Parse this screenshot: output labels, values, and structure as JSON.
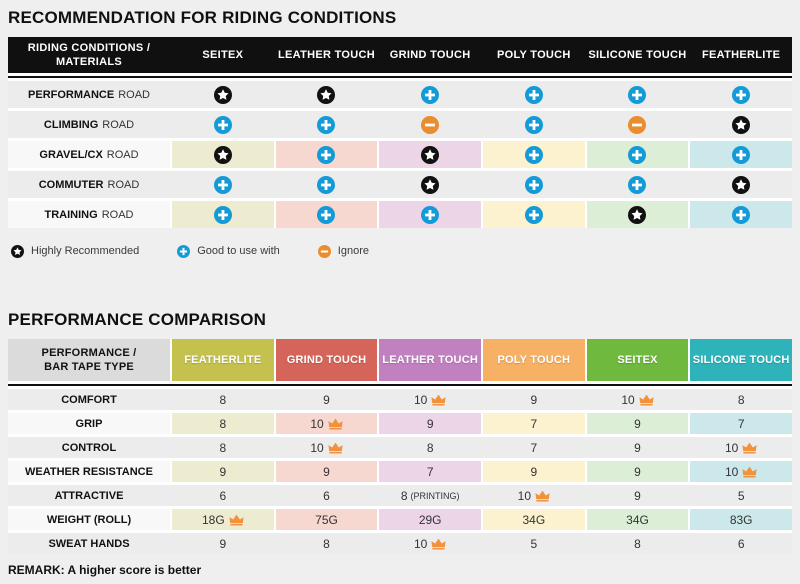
{
  "page": {
    "section1_title": "RECOMMENDATION FOR RIDING CONDITIONS",
    "section2_title": "PERFORMANCE COMPARISON",
    "remark": "REMARK: A higher score is better"
  },
  "colors": {
    "page_bg": "#efeff0",
    "header_black": "#101010",
    "row_gray": "#ececec",
    "row_label_light": "#f8f8f8",
    "blue_plus": "#149bd7",
    "orange_minus": "#e98d2f",
    "star_black": "#111111",
    "crown_orange": "#f0923e",
    "corner_gray": "#dbdbdb",
    "pale": [
      "#eeecd0",
      "#f6d8d0",
      "#edd5e8",
      "#fcf2cf",
      "#ddeed6",
      "#cde8ea"
    ]
  },
  "riding_table": {
    "corner_line1": "RIDING CONDITIONS /",
    "corner_line2": "MATERIALS",
    "columns": [
      "SEITEX",
      "LEATHER TOUCH",
      "GRIND TOUCH",
      "POLY TOUCH",
      "SILICONE TOUCH",
      "FEATHERLITE"
    ],
    "rows": [
      {
        "condition": "PERFORMANCE",
        "suffix": "ROAD",
        "colored": false,
        "cells": [
          "star",
          "star",
          "plus",
          "plus",
          "plus",
          "plus"
        ]
      },
      {
        "condition": "CLIMBING",
        "suffix": "ROAD",
        "colored": false,
        "cells": [
          "plus",
          "plus",
          "minus",
          "plus",
          "minus",
          "star"
        ]
      },
      {
        "condition": "GRAVEL/CX",
        "suffix": "ROAD",
        "colored": true,
        "cells": [
          "star",
          "plus",
          "star",
          "plus",
          "plus",
          "plus"
        ]
      },
      {
        "condition": "COMMUTER",
        "suffix": "ROAD",
        "colored": false,
        "cells": [
          "plus",
          "plus",
          "star",
          "plus",
          "plus",
          "star"
        ]
      },
      {
        "condition": "TRAINING",
        "suffix": "ROAD",
        "colored": true,
        "cells": [
          "plus",
          "plus",
          "plus",
          "plus",
          "star",
          "plus"
        ]
      }
    ]
  },
  "legend": [
    {
      "icon": "star",
      "label": "Highly Recommended"
    },
    {
      "icon": "plus",
      "label": "Good to use with"
    },
    {
      "icon": "minus",
      "label": "Ignore"
    }
  ],
  "performance_table": {
    "corner_line1": "PERFORMANCE /",
    "corner_line2": "BAR TAPE TYPE",
    "columns": [
      {
        "label": "FEATHERLITE",
        "color": "#c5c14f"
      },
      {
        "label": "GRIND TOUCH",
        "color": "#d5655b"
      },
      {
        "label": "LEATHER TOUCH",
        "color": "#c181c1"
      },
      {
        "label": "POLY TOUCH",
        "color": "#f6b164"
      },
      {
        "label": "SEITEX",
        "color": "#6fb93f"
      },
      {
        "label": "SILICONE TOUCH",
        "color": "#2fb3ba"
      }
    ],
    "rows": [
      {
        "metric": "COMFORT",
        "colored": false,
        "cells": [
          {
            "value": "8"
          },
          {
            "value": "9"
          },
          {
            "value": "10",
            "crown": true
          },
          {
            "value": "9"
          },
          {
            "value": "10",
            "crown": true
          },
          {
            "value": "8"
          }
        ]
      },
      {
        "metric": "GRIP",
        "colored": true,
        "cells": [
          {
            "value": "8"
          },
          {
            "value": "10",
            "crown": true
          },
          {
            "value": "9"
          },
          {
            "value": "7"
          },
          {
            "value": "9"
          },
          {
            "value": "7"
          }
        ]
      },
      {
        "metric": "CONTROL",
        "colored": false,
        "cells": [
          {
            "value": "8"
          },
          {
            "value": "10",
            "crown": true
          },
          {
            "value": "8"
          },
          {
            "value": "7"
          },
          {
            "value": "9"
          },
          {
            "value": "10",
            "crown": true
          }
        ]
      },
      {
        "metric": "WEATHER RESISTANCE",
        "colored": true,
        "cells": [
          {
            "value": "9"
          },
          {
            "value": "9"
          },
          {
            "value": "7"
          },
          {
            "value": "9"
          },
          {
            "value": "9"
          },
          {
            "value": "10",
            "crown": true
          }
        ]
      },
      {
        "metric": "ATTRACTIVE",
        "colored": false,
        "cells": [
          {
            "value": "6"
          },
          {
            "value": "6"
          },
          {
            "value": "8",
            "note": "(PRINTING)"
          },
          {
            "value": "10",
            "crown": true
          },
          {
            "value": "9"
          },
          {
            "value": "5"
          }
        ]
      },
      {
        "metric": "WEIGHT (ROLL)",
        "colored": true,
        "cells": [
          {
            "value": "18G",
            "crown": true
          },
          {
            "value": "75G"
          },
          {
            "value": "29G"
          },
          {
            "value": "34G"
          },
          {
            "value": "34G"
          },
          {
            "value": "83G"
          }
        ]
      },
      {
        "metric": "SWEAT HANDS",
        "colored": false,
        "cells": [
          {
            "value": "9"
          },
          {
            "value": "8"
          },
          {
            "value": "10",
            "crown": true
          },
          {
            "value": "5"
          },
          {
            "value": "8"
          },
          {
            "value": "6"
          }
        ]
      }
    ]
  },
  "chart_data": [
    {
      "type": "table",
      "title": "RECOMMENDATION FOR RIDING CONDITIONS",
      "columns": [
        "SEITEX",
        "LEATHER TOUCH",
        "GRIND TOUCH",
        "POLY TOUCH",
        "SILICONE TOUCH",
        "FEATHERLITE"
      ],
      "rows": [
        {
          "label": "PERFORMANCE ROAD",
          "values": [
            "highly_recommended",
            "highly_recommended",
            "good_to_use_with",
            "good_to_use_with",
            "good_to_use_with",
            "good_to_use_with"
          ]
        },
        {
          "label": "CLIMBING ROAD",
          "values": [
            "good_to_use_with",
            "good_to_use_with",
            "ignore",
            "good_to_use_with",
            "ignore",
            "highly_recommended"
          ]
        },
        {
          "label": "GRAVEL/CX ROAD",
          "values": [
            "highly_recommended",
            "good_to_use_with",
            "highly_recommended",
            "good_to_use_with",
            "good_to_use_with",
            "good_to_use_with"
          ]
        },
        {
          "label": "COMMUTER ROAD",
          "values": [
            "good_to_use_with",
            "good_to_use_with",
            "highly_recommended",
            "good_to_use_with",
            "good_to_use_with",
            "highly_recommended"
          ]
        },
        {
          "label": "TRAINING ROAD",
          "values": [
            "good_to_use_with",
            "good_to_use_with",
            "good_to_use_with",
            "good_to_use_with",
            "highly_recommended",
            "good_to_use_with"
          ]
        }
      ],
      "legend": {
        "star": "Highly Recommended",
        "plus": "Good to use with",
        "minus": "Ignore"
      }
    },
    {
      "type": "table",
      "title": "PERFORMANCE COMPARISON",
      "columns": [
        "FEATHERLITE",
        "GRIND TOUCH",
        "LEATHER TOUCH",
        "POLY TOUCH",
        "SEITEX",
        "SILICONE TOUCH"
      ],
      "rows": [
        {
          "label": "COMFORT",
          "values": [
            "8",
            "9",
            "10",
            "9",
            "10",
            "8"
          ],
          "best": [
            "LEATHER TOUCH",
            "SEITEX"
          ]
        },
        {
          "label": "GRIP",
          "values": [
            "8",
            "10",
            "9",
            "7",
            "9",
            "7"
          ],
          "best": [
            "GRIND TOUCH"
          ]
        },
        {
          "label": "CONTROL",
          "values": [
            "8",
            "10",
            "8",
            "7",
            "9",
            "10"
          ],
          "best": [
            "GRIND TOUCH",
            "SILICONE TOUCH"
          ]
        },
        {
          "label": "WEATHER RESISTANCE",
          "values": [
            "9",
            "9",
            "7",
            "9",
            "9",
            "10"
          ],
          "best": [
            "SILICONE TOUCH"
          ]
        },
        {
          "label": "ATTRACTIVE",
          "values": [
            "6",
            "6",
            "8 (PRINTING)",
            "10",
            "9",
            "5"
          ],
          "best": [
            "POLY TOUCH"
          ]
        },
        {
          "label": "WEIGHT (ROLL)",
          "values": [
            "18G",
            "75G",
            "29G",
            "34G",
            "34G",
            "83G"
          ],
          "best": [
            "FEATHERLITE"
          ]
        },
        {
          "label": "SWEAT HANDS",
          "values": [
            "9",
            "8",
            "10",
            "5",
            "8",
            "6"
          ],
          "best": [
            "LEATHER TOUCH"
          ]
        }
      ],
      "note": "REMARK: A higher score is better"
    }
  ]
}
